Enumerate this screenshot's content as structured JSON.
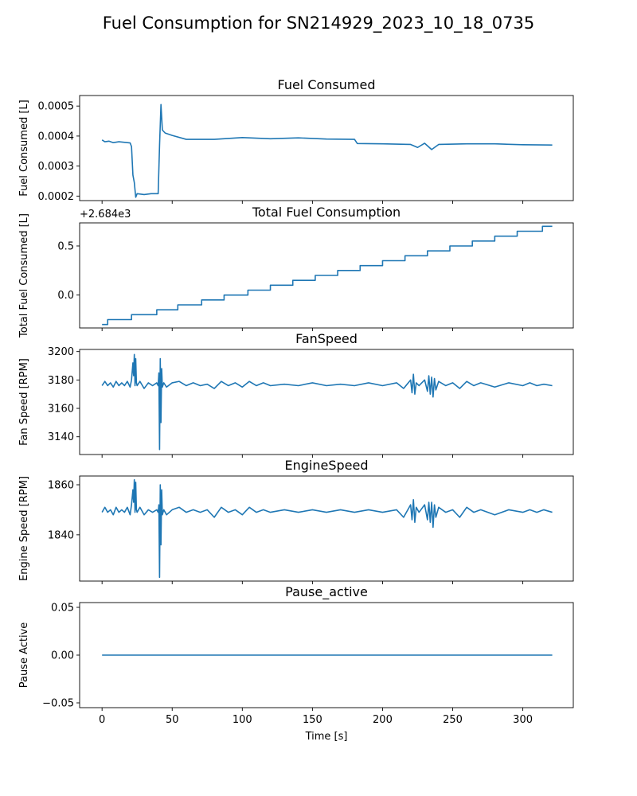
{
  "figure": {
    "suptitle": "Fuel Consumption for SN214929_2023_10_18_0735",
    "xlabel": "Time [s]"
  },
  "line_color": "#1f77b4",
  "chart_data": [
    {
      "type": "line",
      "title": "Fuel Consumed",
      "xlabel": "",
      "ylabel": "Fuel Consumed [L]",
      "xlim": [
        -16,
        336
      ],
      "ylim": [
        0.000185,
        0.000535
      ],
      "xticks": [
        0,
        50,
        100,
        150,
        200,
        250,
        300
      ],
      "xtick_labels_visible": false,
      "yticks": [
        0.0002,
        0.0003,
        0.0004,
        0.0005
      ],
      "ytick_labels": [
        "0.0002",
        "0.0003",
        "0.0004",
        "0.0005"
      ],
      "offset_text": "",
      "series": [
        {
          "x": [
            0,
            2,
            5,
            8,
            12,
            16,
            20,
            21,
            22,
            23,
            24,
            25,
            30,
            35,
            40,
            41,
            42,
            43,
            45,
            50,
            60,
            80,
            100,
            120,
            140,
            160,
            180,
            182,
            200,
            220,
            225,
            230,
            235,
            240,
            260,
            280,
            300,
            321
          ],
          "y": [
            0.000387,
            0.000381,
            0.000383,
            0.000378,
            0.000381,
            0.000379,
            0.000377,
            0.000365,
            0.00027,
            0.000245,
            0.000196,
            0.000208,
            0.000205,
            0.000208,
            0.000208,
            0.00037,
            0.000505,
            0.00042,
            0.00041,
            0.000402,
            0.000389,
            0.000389,
            0.000395,
            0.000391,
            0.000394,
            0.00039,
            0.000389,
            0.000375,
            0.000374,
            0.000372,
            0.000362,
            0.000376,
            0.000355,
            0.000372,
            0.000374,
            0.000374,
            0.000371,
            0.00037
          ]
        }
      ]
    },
    {
      "type": "line",
      "title": "Total Fuel Consumption",
      "xlabel": "",
      "ylabel": "Total Fuel Consumed [L]",
      "xlim": [
        -16,
        336
      ],
      "ylim": [
        -0.335,
        0.735
      ],
      "xticks": [
        0,
        50,
        100,
        150,
        200,
        250,
        300
      ],
      "xtick_labels_visible": false,
      "yticks": [
        0.0,
        0.5
      ],
      "ytick_labels": [
        "0.0",
        "0.5"
      ],
      "offset_text": "+2.684e3",
      "series": [
        {
          "step": true,
          "x": [
            0,
            4,
            21,
            39,
            54,
            71,
            87,
            104,
            120,
            136,
            152,
            168,
            184,
            200,
            216,
            232,
            248,
            264,
            280,
            296,
            314,
            321
          ],
          "y": [
            -0.3,
            -0.25,
            -0.2,
            -0.15,
            -0.1,
            -0.05,
            0.0,
            0.05,
            0.1,
            0.15,
            0.2,
            0.25,
            0.3,
            0.35,
            0.4,
            0.45,
            0.5,
            0.55,
            0.6,
            0.65,
            0.7,
            0.7
          ]
        }
      ]
    },
    {
      "type": "line",
      "title": "FanSpeed",
      "xlabel": "",
      "ylabel": "Fan Speed [RPM]",
      "xlim": [
        -16,
        336
      ],
      "ylim": [
        3127.5,
        3201.5
      ],
      "xticks": [
        0,
        50,
        100,
        150,
        200,
        250,
        300
      ],
      "xtick_labels_visible": false,
      "yticks": [
        3140,
        3160,
        3180,
        3200
      ],
      "ytick_labels": [
        "3140",
        "3160",
        "3180",
        "3200"
      ],
      "offset_text": "",
      "series": [
        {
          "x": [
            0,
            2,
            4,
            6,
            8,
            10,
            12,
            14,
            16,
            18,
            20,
            21,
            22,
            22.5,
            23,
            23.5,
            24,
            24.5,
            25,
            27,
            30,
            33,
            36,
            39,
            40,
            40.5,
            41,
            41.5,
            42,
            42.5,
            43,
            44,
            46,
            50,
            55,
            60,
            65,
            70,
            75,
            80,
            85,
            90,
            95,
            100,
            105,
            110,
            115,
            120,
            130,
            140,
            150,
            160,
            170,
            180,
            190,
            200,
            210,
            215,
            220,
            221,
            222,
            223,
            224,
            226,
            230,
            232,
            233,
            234,
            235,
            236,
            237,
            238,
            240,
            245,
            250,
            255,
            260,
            265,
            270,
            280,
            290,
            300,
            305,
            310,
            315,
            321
          ],
          "y": [
            3176,
            3179,
            3176,
            3178,
            3175,
            3179,
            3176,
            3178,
            3176,
            3179,
            3175,
            3180,
            3192,
            3183,
            3198,
            3176,
            3195,
            3178,
            3176,
            3179,
            3174,
            3178,
            3176,
            3178,
            3176,
            3185,
            3131,
            3195,
            3150,
            3188,
            3175,
            3178,
            3175,
            3178,
            3179,
            3176,
            3178,
            3176,
            3177,
            3174,
            3179,
            3176,
            3178,
            3175,
            3179,
            3176,
            3178,
            3176,
            3177,
            3176,
            3178,
            3176,
            3177,
            3176,
            3178,
            3176,
            3178,
            3174,
            3180,
            3171,
            3184,
            3170,
            3178,
            3176,
            3180,
            3172,
            3183,
            3170,
            3182,
            3168,
            3181,
            3173,
            3179,
            3176,
            3178,
            3174,
            3179,
            3176,
            3178,
            3175,
            3178,
            3176,
            3178,
            3176,
            3177,
            3176
          ]
        }
      ]
    },
    {
      "type": "line",
      "title": "EngineSpeed",
      "xlabel": "",
      "ylabel": "Engine Speed [RPM]",
      "xlim": [
        -16,
        336
      ],
      "ylim": [
        1821.5,
        1863.5
      ],
      "xticks": [
        0,
        50,
        100,
        150,
        200,
        250,
        300
      ],
      "xtick_labels_visible": false,
      "yticks": [
        1840,
        1860
      ],
      "ytick_labels": [
        "1840",
        "1860"
      ],
      "offset_text": "",
      "series": [
        {
          "x": [
            0,
            2,
            4,
            6,
            8,
            10,
            12,
            14,
            16,
            18,
            20,
            21,
            22,
            22.5,
            23,
            23.5,
            24,
            24.5,
            25,
            27,
            30,
            33,
            36,
            39,
            40,
            40.5,
            41,
            41.5,
            42,
            42.5,
            43,
            44,
            46,
            50,
            55,
            60,
            65,
            70,
            75,
            80,
            85,
            90,
            95,
            100,
            105,
            110,
            115,
            120,
            130,
            140,
            150,
            160,
            170,
            180,
            190,
            200,
            210,
            215,
            220,
            221,
            222,
            223,
            224,
            226,
            230,
            232,
            233,
            234,
            235,
            236,
            237,
            238,
            240,
            245,
            250,
            255,
            260,
            265,
            270,
            280,
            290,
            300,
            305,
            310,
            315,
            321
          ],
          "y": [
            1849,
            1851,
            1849,
            1850,
            1848,
            1851,
            1849,
            1850,
            1849,
            1851,
            1848,
            1852,
            1858,
            1853,
            1862,
            1849,
            1861,
            1850,
            1849,
            1851,
            1848,
            1850,
            1849,
            1850,
            1849,
            1852,
            1823,
            1860,
            1836,
            1858,
            1848,
            1850,
            1848,
            1850,
            1851,
            1849,
            1850,
            1849,
            1850,
            1847,
            1851,
            1849,
            1850,
            1848,
            1851,
            1849,
            1850,
            1849,
            1850,
            1849,
            1850,
            1849,
            1850,
            1849,
            1850,
            1849,
            1850,
            1847,
            1852,
            1846,
            1854,
            1845,
            1851,
            1849,
            1852,
            1846,
            1853,
            1845,
            1853,
            1843,
            1852,
            1847,
            1851,
            1849,
            1850,
            1847,
            1851,
            1849,
            1850,
            1848,
            1850,
            1849,
            1850,
            1849,
            1850,
            1849
          ]
        }
      ]
    },
    {
      "type": "line",
      "title": "Pause_active",
      "xlabel": "Time [s]",
      "ylabel": "Pause Active",
      "xlim": [
        -16,
        336
      ],
      "ylim": [
        -0.055,
        0.055
      ],
      "xticks": [
        0,
        50,
        100,
        150,
        200,
        250,
        300
      ],
      "xtick_labels": [
        "0",
        "50",
        "100",
        "150",
        "200",
        "250",
        "300"
      ],
      "xtick_labels_visible": true,
      "yticks": [
        -0.05,
        0.0,
        0.05
      ],
      "ytick_labels": [
        "−0.05",
        "0.00",
        "0.05"
      ],
      "offset_text": "",
      "series": [
        {
          "x": [
            0,
            321
          ],
          "y": [
            0,
            0
          ]
        }
      ]
    }
  ]
}
